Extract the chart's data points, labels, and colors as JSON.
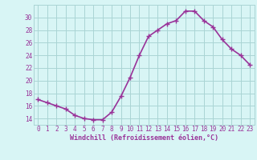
{
  "x": [
    0,
    1,
    2,
    3,
    4,
    5,
    6,
    7,
    8,
    9,
    10,
    11,
    12,
    13,
    14,
    15,
    16,
    17,
    18,
    19,
    20,
    21,
    22,
    23
  ],
  "y": [
    17,
    16.5,
    16,
    15.5,
    14.5,
    14,
    13.8,
    13.8,
    15,
    17.5,
    20.5,
    24,
    27,
    28,
    29,
    29.5,
    31,
    31,
    29.5,
    28.5,
    26.5,
    25,
    24,
    22.5
  ],
  "line_color": "#993399",
  "marker": "+",
  "marker_size": 4,
  "bg_color": "#d8f5f5",
  "grid_color": "#aad4d4",
  "xlabel": "Windchill (Refroidissement éolien,°C)",
  "xlabel_color": "#993399",
  "tick_color": "#993399",
  "yticks": [
    14,
    16,
    18,
    20,
    22,
    24,
    26,
    28,
    30
  ],
  "ylim": [
    13.0,
    32.0
  ],
  "xlim": [
    -0.5,
    23.5
  ],
  "line_width": 1.2,
  "font_family": "monospace",
  "tick_fontsize": 5.5,
  "xlabel_fontsize": 6.0
}
